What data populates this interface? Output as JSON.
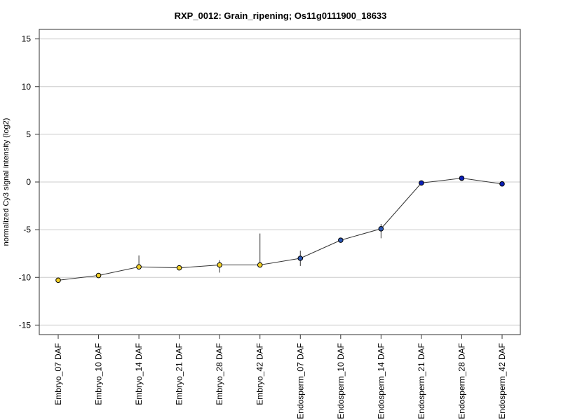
{
  "chart_data": {
    "type": "line",
    "title": "RXP_0012: Grain_ripening; Os11g0111900_18633",
    "xlabel": "",
    "ylabel": "normalized Cy3 signal intensity (log2)",
    "ylim": [
      -16,
      16
    ],
    "yticks": [
      "15",
      "10",
      "5",
      "0",
      "-5",
      "-10",
      "-15"
    ],
    "ytick_values": [
      15,
      10,
      5,
      0,
      -5,
      -10,
      -15
    ],
    "grid": "horizontal",
    "categories": [
      "Embryo_07 DAF",
      "Embryo_10 DAF",
      "Embryo_14 DAF",
      "Embryo_21 DAF",
      "Embryo_28 DAF",
      "Embryo_42 DAF",
      "Endosperm_07 DAF",
      "Endosperm_10 DAF",
      "Endosperm_14 DAF",
      "Endosperm_21 DAF",
      "Endosperm_28 DAF",
      "Endosperm_42 DAF"
    ],
    "values": [
      -10.3,
      -9.8,
      -8.9,
      -9.0,
      -8.7,
      -8.7,
      -8.0,
      -6.1,
      -4.9,
      -0.1,
      0.4,
      -0.2
    ],
    "error_low": [
      null,
      null,
      null,
      null,
      -9.5,
      null,
      -8.8,
      null,
      -5.9,
      null,
      null,
      null
    ],
    "error_high": [
      null,
      null,
      -7.7,
      null,
      -8.2,
      -5.4,
      -7.2,
      null,
      -4.4,
      null,
      null,
      null
    ],
    "point_colors": [
      "#f2d027",
      "#f2d027",
      "#f2d027",
      "#f2d027",
      "#f2d027",
      "#f2d027",
      "#2b57b5",
      "#2b57b5",
      "#2b57b5",
      "#0a1fb8",
      "#0a1fb8",
      "#0a1fb8"
    ],
    "colors": {
      "line": "#333333",
      "grid": "#cccccc",
      "frame": "#333333",
      "marker_edge": "#000000"
    }
  }
}
